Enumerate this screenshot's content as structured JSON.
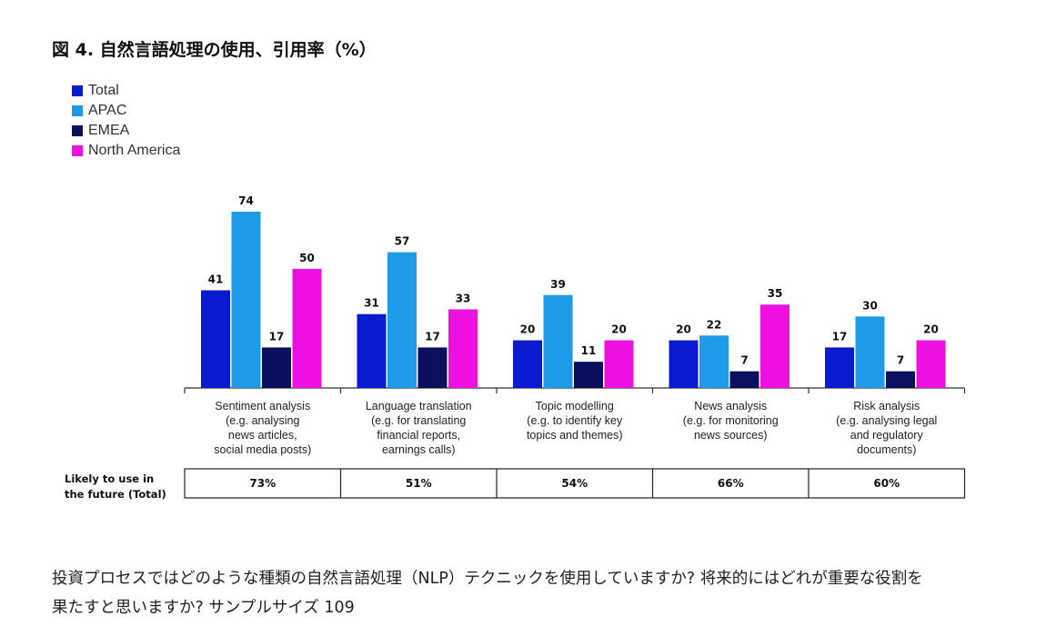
{
  "title": "図 4. 自然言語処理の使用、引用率（%）",
  "legend": [
    {
      "name": "Total",
      "color": "#0a1acf"
    },
    {
      "name": "APAC",
      "color": "#1e9be8"
    },
    {
      "name": "EMEA",
      "color": "#0a0f5e"
    },
    {
      "name": "North America",
      "color": "#ee10e0"
    }
  ],
  "chart_data": {
    "type": "bar",
    "categories": [
      [
        "Sentiment analysis",
        "(e.g. analysing",
        "news articles,",
        "social media posts)"
      ],
      [
        "Language translation",
        "(e.g. for translating",
        "financial reports,",
        "earnings calls)"
      ],
      [
        "Topic modelling",
        "(e.g. to identify key",
        "topics and themes)"
      ],
      [
        "News analysis",
        "(e.g. for monitoring",
        "news sources)"
      ],
      [
        "Risk analysis",
        "(e.g. analysing legal",
        "and regulatory",
        "documents)"
      ]
    ],
    "series": [
      {
        "name": "Total",
        "color": "#0a1acf",
        "values": [
          41,
          31,
          20,
          20,
          17
        ]
      },
      {
        "name": "APAC",
        "color": "#1e9be8",
        "values": [
          74,
          57,
          39,
          22,
          30
        ]
      },
      {
        "name": "EMEA",
        "color": "#0a0f5e",
        "values": [
          17,
          17,
          11,
          7,
          7
        ]
      },
      {
        "name": "North America",
        "color": "#ee10e0",
        "values": [
          50,
          33,
          20,
          35,
          20
        ]
      }
    ],
    "ylim": [
      0,
      74
    ],
    "data_labels": true,
    "table": {
      "row_label": [
        "Likely to use in",
        "the future (Total)"
      ],
      "values": [
        "73%",
        "51%",
        "54%",
        "66%",
        "60%"
      ]
    }
  },
  "footer": {
    "line1": "投資プロセスではどのような種類の自然言語処理（NLP）テクニックを使用していますか? 将来的にはどれが重要な役割を",
    "line2": "果たすと思いますか? サンプルサイズ 109"
  }
}
